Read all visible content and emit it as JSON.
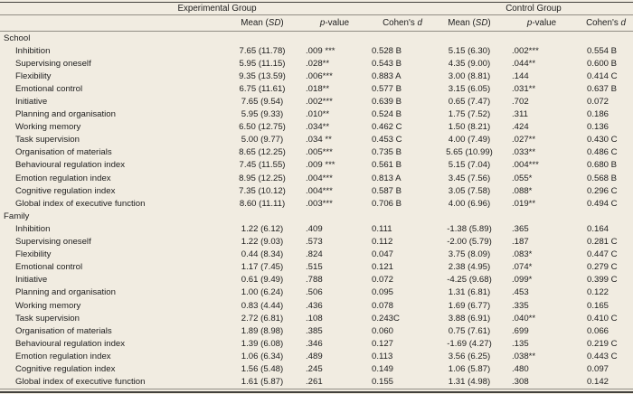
{
  "colors": {
    "background": "#f1ece1",
    "rule_dark": "#44423d",
    "rule_light": "#918d84",
    "text": "#1d1d1d"
  },
  "table": {
    "group_headers": {
      "experimental": "Experimental Group",
      "control": "Control Group"
    },
    "column_headers": {
      "mean_prefix": "Mean (",
      "mean_italic": "SD",
      "mean_suffix": ")",
      "p_italic": "p",
      "p_suffix": "-value",
      "cohen_prefix": "Cohen's ",
      "cohen_italic": "d"
    },
    "sections": [
      {
        "label": "School",
        "rows": [
          {
            "label": "Inhibition",
            "exp_mean_sd": "7.65 (11.78)",
            "exp_p": ".009 ***",
            "exp_d": "0.528 B",
            "ctrl_mean_sd": "5.15 (6.30)",
            "ctrl_p": ".002***",
            "ctrl_d": "0.554 B"
          },
          {
            "label": "Supervising oneself",
            "exp_mean_sd": "5.95 (11.15)",
            "exp_p": ".028**",
            "exp_d": "0.543 B",
            "ctrl_mean_sd": "4.35 (9.00)",
            "ctrl_p": ".044**",
            "ctrl_d": "0.600 B"
          },
          {
            "label": "Flexibility",
            "exp_mean_sd": "9.35 (13.59)",
            "exp_p": ".006***",
            "exp_d": "0.883 A",
            "ctrl_mean_sd": "3.00 (8.81)",
            "ctrl_p": ".144",
            "ctrl_d": "0.414 C"
          },
          {
            "label": "Emotional control",
            "exp_mean_sd": "6.75 (11.61)",
            "exp_p": ".018**",
            "exp_d": "0.577 B",
            "ctrl_mean_sd": "3.15 (6.05)",
            "ctrl_p": ".031**",
            "ctrl_d": "0.637 B"
          },
          {
            "label": "Initiative",
            "exp_mean_sd": "7.65 (9.54)",
            "exp_p": ".002***",
            "exp_d": "0.639 B",
            "ctrl_mean_sd": "0.65 (7.47)",
            "ctrl_p": ".702",
            "ctrl_d": "0.072"
          },
          {
            "label": "Planning and organisation",
            "exp_mean_sd": "5.95 (9.33)",
            "exp_p": ".010**",
            "exp_d": "0.524 B",
            "ctrl_mean_sd": "1.75 (7.52)",
            "ctrl_p": ".311",
            "ctrl_d": "0.186"
          },
          {
            "label": "Working memory",
            "exp_mean_sd": "6.50 (12.75)",
            "exp_p": ".034**",
            "exp_d": "0.462 C",
            "ctrl_mean_sd": "1.50 (8.21)",
            "ctrl_p": ".424",
            "ctrl_d": "0.136"
          },
          {
            "label": "Task supervision",
            "exp_mean_sd": "5.00 (9.77)",
            "exp_p": ".034 **",
            "exp_d": "0.453 C",
            "ctrl_mean_sd": "4.00 (7.49)",
            "ctrl_p": ".027**",
            "ctrl_d": "0.430 C"
          },
          {
            "label": "Organisation of materials",
            "exp_mean_sd": "8.65 (12.25)",
            "exp_p": ".005***",
            "exp_d": "0.735 B",
            "ctrl_mean_sd": "5.65 (10.99)",
            "ctrl_p": ".033**",
            "ctrl_d": "0.486 C"
          },
          {
            "label": "Behavioural regulation index",
            "exp_mean_sd": "7.45 (11.55)",
            "exp_p": ".009 ***",
            "exp_d": "0.561 B",
            "ctrl_mean_sd": "5.15 (7.04)",
            "ctrl_p": ".004***",
            "ctrl_d": "0.680 B"
          },
          {
            "label": "Emotion regulation index",
            "exp_mean_sd": "8.95 (12.25)",
            "exp_p": ".004***",
            "exp_d": "0.813 A",
            "ctrl_mean_sd": "3.45 (7.56)",
            "ctrl_p": ".055*",
            "ctrl_d": "0.568 B"
          },
          {
            "label": "Cognitive regulation index",
            "exp_mean_sd": "7.35 (10.12)",
            "exp_p": ".004***",
            "exp_d": "0.587 B",
            "ctrl_mean_sd": "3.05 (7.58)",
            "ctrl_p": ".088*",
            "ctrl_d": "0.296 C"
          },
          {
            "label": "Global index of executive function",
            "exp_mean_sd": "8.60 (11.11)",
            "exp_p": ".003***",
            "exp_d": "0.706 B",
            "ctrl_mean_sd": "4.00 (6.96)",
            "ctrl_p": ".019**",
            "ctrl_d": "0.494 C"
          }
        ]
      },
      {
        "label": "Family",
        "rows": [
          {
            "label": "Inhibition",
            "exp_mean_sd": "1.22 (6.12)",
            "exp_p": ".409",
            "exp_d": "0.111",
            "ctrl_mean_sd": "-1.38 (5.89)",
            "ctrl_p": ".365",
            "ctrl_d": "0.164"
          },
          {
            "label": "Supervising oneself",
            "exp_mean_sd": "1.22 (9.03)",
            "exp_p": ".573",
            "exp_d": "0.112",
            "ctrl_mean_sd": "-2.00 (5.79)",
            "ctrl_p": ".187",
            "ctrl_d": "0.281 C"
          },
          {
            "label": "Flexibility",
            "exp_mean_sd": "0.44 (8.34)",
            "exp_p": ".824",
            "exp_d": "0.047",
            "ctrl_mean_sd": "3.75 (8.09)",
            "ctrl_p": ".083*",
            "ctrl_d": "0.447 C"
          },
          {
            "label": "Emotional control",
            "exp_mean_sd": "1.17 (7.45)",
            "exp_p": ".515",
            "exp_d": "0.121",
            "ctrl_mean_sd": "2.38 (4.95)",
            "ctrl_p": ".074*",
            "ctrl_d": "0.279 C"
          },
          {
            "label": "Initiative",
            "exp_mean_sd": "0.61 (9.49)",
            "exp_p": ".788",
            "exp_d": "0.072",
            "ctrl_mean_sd": "-4.25 (9.68)",
            "ctrl_p": ".099*",
            "ctrl_d": "0.399 C"
          },
          {
            "label": "Planning and organisation",
            "exp_mean_sd": "1.00 (6.24)",
            "exp_p": ".506",
            "exp_d": "0.095",
            "ctrl_mean_sd": "1.31 (6.81)",
            "ctrl_p": ".453",
            "ctrl_d": "0.122"
          },
          {
            "label": "Working memory",
            "exp_mean_sd": "0.83 (4.44)",
            "exp_p": ".436",
            "exp_d": "0.078",
            "ctrl_mean_sd": "1.69 (6.77)",
            "ctrl_p": ".335",
            "ctrl_d": "0.165"
          },
          {
            "label": "Task supervision",
            "exp_mean_sd": "2.72 (6.81)",
            "exp_p": ".108",
            "exp_d": "0.243C",
            "ctrl_mean_sd": "3.88 (6.91)",
            "ctrl_p": ".040**",
            "ctrl_d": "0.410 C"
          },
          {
            "label": "Organisation of materials",
            "exp_mean_sd": "1.89 (8.98)",
            "exp_p": ".385",
            "exp_d": "0.060",
            "ctrl_mean_sd": "0.75 (7.61)",
            "ctrl_p": ".699",
            "ctrl_d": "0.066"
          },
          {
            "label": "Behavioural regulation index",
            "exp_mean_sd": "1.39 (6.08)",
            "exp_p": ".346",
            "exp_d": "0.127",
            "ctrl_mean_sd": "-1.69 (4.27)",
            "ctrl_p": ".135",
            "ctrl_d": "0.219 C"
          },
          {
            "label": "Emotion regulation index",
            "exp_mean_sd": "1.06 (6.34)",
            "exp_p": ".489",
            "exp_d": "0.113",
            "ctrl_mean_sd": "3.56 (6.25)",
            "ctrl_p": ".038**",
            "ctrl_d": "0.443 C"
          },
          {
            "label": "Cognitive regulation index",
            "exp_mean_sd": "1.56 (5.48)",
            "exp_p": ".245",
            "exp_d": "0.149",
            "ctrl_mean_sd": "1.06 (5.87)",
            "ctrl_p": ".480",
            "ctrl_d": "0.097"
          },
          {
            "label": "Global index of executive function",
            "exp_mean_sd": "1.61 (5.87)",
            "exp_p": ".261",
            "exp_d": "0.155",
            "ctrl_mean_sd": "1.31 (4.98)",
            "ctrl_p": ".308",
            "ctrl_d": "0.142"
          }
        ]
      }
    ]
  }
}
